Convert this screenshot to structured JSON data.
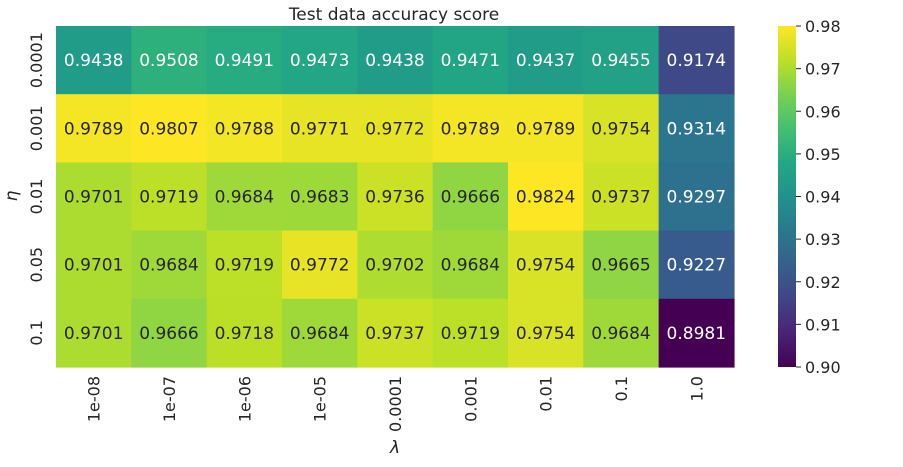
{
  "chart_data": {
    "type": "heatmap",
    "title": "Test data accuracy score",
    "xlabel": "λ",
    "ylabel": "η",
    "x_categories": [
      "1e-08",
      "1e-07",
      "1e-06",
      "1e-05",
      "0.0001",
      "0.001",
      "0.01",
      "0.1",
      "1.0"
    ],
    "y_categories": [
      "0.0001",
      "0.001",
      "0.01",
      "0.05",
      "0.1"
    ],
    "values": [
      [
        "0.9438",
        "0.9508",
        "0.9491",
        "0.9473",
        "0.9438",
        "0.9471",
        "0.9437",
        "0.9455",
        "0.9174"
      ],
      [
        "0.9789",
        "0.9807",
        "0.9788",
        "0.9771",
        "0.9772",
        "0.9789",
        "0.9789",
        "0.9754",
        "0.9314"
      ],
      [
        "0.9701",
        "0.9719",
        "0.9684",
        "0.9683",
        "0.9736",
        "0.9666",
        "0.9824",
        "0.9737",
        "0.9297"
      ],
      [
        "0.9701",
        "0.9684",
        "0.9719",
        "0.9772",
        "0.9702",
        "0.9684",
        "0.9754",
        "0.9665",
        "0.9227"
      ],
      [
        "0.9701",
        "0.9666",
        "0.9718",
        "0.9684",
        "0.9737",
        "0.9719",
        "0.9754",
        "0.9684",
        "0.8981"
      ]
    ],
    "colormap": "viridis",
    "vmin": 0.9,
    "vmax": 0.98,
    "colorbar_ticks": [
      "0.90",
      "0.91",
      "0.92",
      "0.93",
      "0.94",
      "0.95",
      "0.96",
      "0.97",
      "0.98"
    ],
    "grid": false,
    "legend": "colorbar right"
  },
  "colors": {
    "text_dark": "#262626",
    "text_light": "#ffffff"
  }
}
